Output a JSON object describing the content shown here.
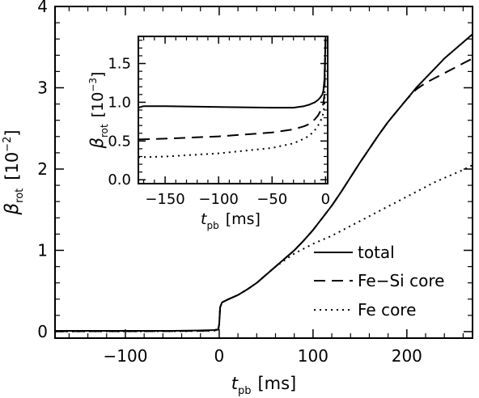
{
  "chart_data": [
    {
      "type": "line",
      "xlabel": "t",
      "xlabel_sub": "pb",
      "xlabel_unit": "[ms]",
      "ylabel": "β",
      "ylabel_sub": "rot",
      "ylabel_unit": "[10",
      "ylabel_exp": "−2",
      "ylabel_close": "]",
      "xlim": [
        -175,
        270
      ],
      "ylim": [
        -0.08,
        4.0
      ],
      "xticks": [
        -100,
        0,
        100,
        200
      ],
      "xtick_labels": [
        "−100",
        "0",
        "100",
        "200"
      ],
      "yticks": [
        0,
        1,
        2,
        3,
        4
      ],
      "ytick_labels": [
        "0",
        "1",
        "2",
        "3",
        "4"
      ],
      "grid": false,
      "legend_position": "bottom-right",
      "series": [
        {
          "name": "total",
          "style": "solid",
          "x": [
            -175,
            -150,
            -100,
            -50,
            -20,
            -5,
            -1,
            0,
            1,
            3,
            10,
            20,
            30,
            40,
            50,
            60,
            70,
            80,
            90,
            100,
            110,
            120,
            130,
            140,
            150,
            160,
            170,
            180,
            190,
            200,
            210,
            220,
            230,
            240,
            250,
            260,
            270
          ],
          "values": [
            0.01,
            0.01,
            0.01,
            0.01,
            0.015,
            0.02,
            0.03,
            0.09,
            0.3,
            0.36,
            0.4,
            0.45,
            0.52,
            0.6,
            0.7,
            0.8,
            0.9,
            1.0,
            1.12,
            1.25,
            1.4,
            1.55,
            1.72,
            1.9,
            2.08,
            2.25,
            2.42,
            2.58,
            2.72,
            2.86,
            3.0,
            3.12,
            3.24,
            3.36,
            3.46,
            3.56,
            3.66
          ]
        },
        {
          "name": "Fe-Si core",
          "style": "dashed",
          "x": [
            -175,
            -150,
            -100,
            -50,
            -20,
            -5,
            -1,
            0,
            1,
            3,
            10,
            20,
            30,
            40,
            50,
            60,
            70,
            80,
            90,
            100,
            110,
            120,
            130,
            140,
            150,
            160,
            170,
            180,
            190,
            200,
            210,
            220,
            230,
            240,
            250,
            260,
            270
          ],
          "values": [
            0.005,
            0.005,
            0.005,
            0.006,
            0.01,
            0.015,
            0.025,
            0.09,
            0.3,
            0.36,
            0.4,
            0.45,
            0.52,
            0.6,
            0.7,
            0.8,
            0.9,
            1.0,
            1.12,
            1.25,
            1.4,
            1.55,
            1.72,
            1.9,
            2.08,
            2.25,
            2.42,
            2.58,
            2.72,
            2.86,
            2.98,
            3.06,
            3.12,
            3.18,
            3.24,
            3.3,
            3.36
          ]
        },
        {
          "name": "Fe core",
          "style": "dotted",
          "x": [
            -175,
            -150,
            -100,
            -50,
            -20,
            -5,
            -1,
            0,
            1,
            3,
            10,
            20,
            30,
            40,
            50,
            60,
            70,
            80,
            90,
            100,
            110,
            120,
            130,
            140,
            150,
            160,
            170,
            180,
            190,
            200,
            210,
            220,
            230,
            240,
            250,
            260,
            270
          ],
          "values": [
            0.003,
            0.003,
            0.004,
            0.005,
            0.008,
            0.013,
            0.02,
            0.09,
            0.3,
            0.36,
            0.4,
            0.45,
            0.52,
            0.6,
            0.7,
            0.8,
            0.88,
            0.96,
            1.02,
            1.08,
            1.13,
            1.18,
            1.24,
            1.3,
            1.36,
            1.42,
            1.48,
            1.54,
            1.6,
            1.66,
            1.72,
            1.78,
            1.84,
            1.89,
            1.94,
            1.99,
            2.05
          ]
        }
      ],
      "legend": [
        {
          "label": "total",
          "style": "solid"
        },
        {
          "label": "Fe−Si core",
          "style": "dashed"
        },
        {
          "label": "Fe core",
          "style": "dotted"
        }
      ]
    },
    {
      "type": "line",
      "xlabel": "t",
      "xlabel_sub": "pb",
      "xlabel_unit": "[ms]",
      "ylabel": "β",
      "ylabel_sub": "rot",
      "ylabel_unit": "[10",
      "ylabel_exp": "−3",
      "ylabel_close": "]",
      "xlim": [
        -175,
        2
      ],
      "ylim": [
        -0.05,
        1.85
      ],
      "xticks": [
        -150,
        -100,
        -50,
        0
      ],
      "xtick_labels": [
        "−150",
        "−100",
        "−50",
        "0"
      ],
      "yticks": [
        0.0,
        0.5,
        1.0,
        1.5
      ],
      "ytick_labels": [
        "0.0",
        "0.5",
        "1.0",
        "1.5"
      ],
      "grid": false,
      "series": [
        {
          "name": "total",
          "style": "solid",
          "x": [
            -175,
            -170,
            -150,
            -100,
            -50,
            -30,
            -20,
            -15,
            -10,
            -7,
            -5,
            -3,
            -2,
            -1,
            0
          ],
          "values": [
            0.93,
            0.95,
            0.95,
            0.94,
            0.93,
            0.93,
            0.95,
            0.97,
            1.0,
            1.03,
            1.06,
            1.1,
            1.15,
            1.3,
            1.85
          ]
        },
        {
          "name": "Fe-Si core",
          "style": "dashed",
          "x": [
            -175,
            -150,
            -100,
            -50,
            -30,
            -20,
            -15,
            -10,
            -7,
            -5,
            -3,
            -2,
            -1,
            0
          ],
          "values": [
            0.52,
            0.53,
            0.56,
            0.61,
            0.65,
            0.69,
            0.72,
            0.78,
            0.83,
            0.88,
            0.93,
            0.99,
            1.1,
            1.85
          ]
        },
        {
          "name": "Fe core",
          "style": "dotted",
          "x": [
            -175,
            -150,
            -100,
            -50,
            -30,
            -20,
            -15,
            -10,
            -7,
            -5,
            -3,
            -2,
            -1,
            0
          ],
          "values": [
            0.29,
            0.3,
            0.34,
            0.41,
            0.47,
            0.53,
            0.57,
            0.64,
            0.7,
            0.75,
            0.81,
            0.87,
            0.99,
            1.85
          ]
        }
      ]
    }
  ]
}
